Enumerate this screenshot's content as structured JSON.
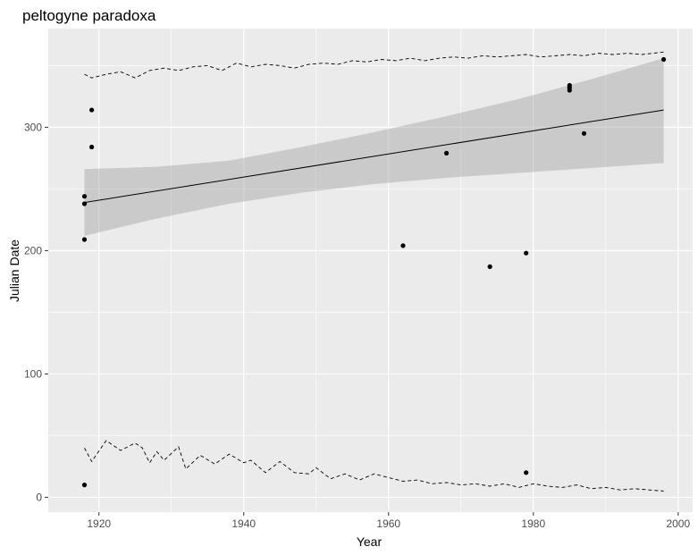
{
  "chart_data": {
    "type": "scatter",
    "title": "peltogyne paradoxa",
    "xlabel": "Year",
    "ylabel": "Julian Date",
    "xlim": [
      1913,
      2002
    ],
    "ylim": [
      -12,
      380
    ],
    "x_ticks": [
      1920,
      1940,
      1960,
      1980,
      2000
    ],
    "y_ticks": [
      0,
      100,
      200,
      300
    ],
    "grid": true,
    "points": [
      {
        "x": 1918,
        "y": 10
      },
      {
        "x": 1918,
        "y": 209
      },
      {
        "x": 1918,
        "y": 238
      },
      {
        "x": 1918,
        "y": 244
      },
      {
        "x": 1919,
        "y": 284
      },
      {
        "x": 1919,
        "y": 314
      },
      {
        "x": 1962,
        "y": 204
      },
      {
        "x": 1968,
        "y": 279
      },
      {
        "x": 1974,
        "y": 187
      },
      {
        "x": 1979,
        "y": 198
      },
      {
        "x": 1979,
        "y": 20
      },
      {
        "x": 1985,
        "y": 330
      },
      {
        "x": 1985,
        "y": 332
      },
      {
        "x": 1985,
        "y": 334
      },
      {
        "x": 1987,
        "y": 295
      },
      {
        "x": 1998,
        "y": 355
      }
    ],
    "trend": {
      "x": [
        1918,
        1998
      ],
      "y": [
        239,
        314
      ]
    },
    "confidence_band": {
      "x": [
        1918,
        1928,
        1938,
        1948,
        1958,
        1968,
        1978,
        1988,
        1998
      ],
      "lower": [
        212,
        226,
        238,
        247,
        254,
        259,
        263,
        267,
        271
      ],
      "upper": [
        266,
        268,
        273,
        284,
        296,
        309,
        323,
        339,
        356
      ]
    },
    "upper_envelope": {
      "x": [
        1918,
        1919,
        1921,
        1923,
        1925,
        1927,
        1929,
        1931,
        1933,
        1935,
        1937,
        1939,
        1941,
        1943,
        1945,
        1947,
        1949,
        1951,
        1953,
        1955,
        1957,
        1959,
        1961,
        1963,
        1965,
        1967,
        1969,
        1971,
        1973,
        1975,
        1977,
        1979,
        1981,
        1983,
        1985,
        1987,
        1989,
        1991,
        1993,
        1995,
        1998
      ],
      "y": [
        343,
        340,
        343,
        345,
        340,
        346,
        348,
        346,
        349,
        350,
        346,
        352,
        349,
        351,
        350,
        348,
        351,
        352,
        351,
        354,
        353,
        355,
        354,
        356,
        354,
        356,
        357,
        356,
        358,
        357,
        358,
        359,
        357,
        358,
        359,
        358,
        360,
        359,
        360,
        359,
        361
      ]
    },
    "lower_envelope": {
      "x": [
        1918,
        1919,
        1921,
        1923,
        1925,
        1926,
        1927,
        1928,
        1929,
        1931,
        1932,
        1934,
        1936,
        1938,
        1940,
        1941,
        1943,
        1945,
        1947,
        1949,
        1950,
        1952,
        1954,
        1956,
        1958,
        1960,
        1962,
        1964,
        1966,
        1968,
        1970,
        1972,
        1974,
        1976,
        1978,
        1980,
        1982,
        1984,
        1986,
        1988,
        1990,
        1992,
        1994,
        1996,
        1998
      ],
      "y": [
        40,
        29,
        46,
        38,
        44,
        40,
        28,
        37,
        30,
        41,
        23,
        34,
        27,
        35,
        28,
        30,
        20,
        29,
        20,
        19,
        24,
        15,
        19,
        14,
        19,
        16,
        13,
        14,
        11,
        12,
        10,
        11,
        9,
        11,
        8,
        11,
        9,
        8,
        10,
        7,
        8,
        6,
        7,
        6,
        5
      ]
    }
  }
}
